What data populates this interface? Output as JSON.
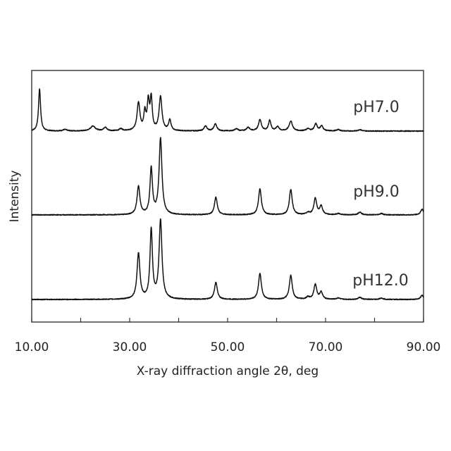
{
  "chart_data": {
    "type": "line",
    "title": "",
    "xlabel": "X-ray diffraction angle 2θ, deg",
    "ylabel": "Intensity",
    "xlim": [
      10,
      90
    ],
    "xticks": [
      10,
      20,
      30,
      40,
      50,
      60,
      70,
      80,
      90
    ],
    "xtick_labels": [
      "10.00",
      "",
      "30.00",
      "",
      "50.00",
      "",
      "70.00",
      "",
      "90.00"
    ],
    "yticks_shown": false,
    "grid": false,
    "legend": "none",
    "series": [
      {
        "name": "pH7.0",
        "baseline": 0,
        "peaks": [
          {
            "x": 11.6,
            "h": 60,
            "w": 0.25
          },
          {
            "x": 16.8,
            "h": 2,
            "w": 0.5
          },
          {
            "x": 22.5,
            "h": 7,
            "w": 0.6
          },
          {
            "x": 25.0,
            "h": 5,
            "w": 0.4
          },
          {
            "x": 28.2,
            "h": 3,
            "w": 0.4
          },
          {
            "x": 31.8,
            "h": 40,
            "w": 0.35
          },
          {
            "x": 33.1,
            "h": 25,
            "w": 0.25
          },
          {
            "x": 33.8,
            "h": 40,
            "w": 0.25
          },
          {
            "x": 34.4,
            "h": 45,
            "w": 0.25
          },
          {
            "x": 36.3,
            "h": 48,
            "w": 0.35
          },
          {
            "x": 38.2,
            "h": 15,
            "w": 0.3
          },
          {
            "x": 45.5,
            "h": 7,
            "w": 0.35
          },
          {
            "x": 47.5,
            "h": 10,
            "w": 0.35
          },
          {
            "x": 51.8,
            "h": 3,
            "w": 0.4
          },
          {
            "x": 54.2,
            "h": 5,
            "w": 0.4
          },
          {
            "x": 56.6,
            "h": 16,
            "w": 0.35
          },
          {
            "x": 58.6,
            "h": 15,
            "w": 0.3
          },
          {
            "x": 60.2,
            "h": 6,
            "w": 0.35
          },
          {
            "x": 62.9,
            "h": 14,
            "w": 0.4
          },
          {
            "x": 66.4,
            "h": 3,
            "w": 0.4
          },
          {
            "x": 68.0,
            "h": 10,
            "w": 0.35
          },
          {
            "x": 69.2,
            "h": 7,
            "w": 0.35
          },
          {
            "x": 72.6,
            "h": 2,
            "w": 0.4
          },
          {
            "x": 77.0,
            "h": 2,
            "w": 0.4
          }
        ]
      },
      {
        "name": "pH9.0",
        "baseline": 0,
        "peaks": [
          {
            "x": 31.8,
            "h": 40,
            "w": 0.35
          },
          {
            "x": 34.4,
            "h": 65,
            "w": 0.3
          },
          {
            "x": 36.3,
            "h": 108,
            "w": 0.35
          },
          {
            "x": 47.6,
            "h": 25,
            "w": 0.35
          },
          {
            "x": 56.6,
            "h": 37,
            "w": 0.35
          },
          {
            "x": 62.9,
            "h": 36,
            "w": 0.35
          },
          {
            "x": 66.4,
            "h": 3,
            "w": 0.4
          },
          {
            "x": 67.9,
            "h": 23,
            "w": 0.35
          },
          {
            "x": 69.1,
            "h": 12,
            "w": 0.35
          },
          {
            "x": 72.6,
            "h": 2,
            "w": 0.4
          },
          {
            "x": 77.0,
            "h": 4,
            "w": 0.4
          },
          {
            "x": 81.4,
            "h": 2,
            "w": 0.4
          },
          {
            "x": 89.7,
            "h": 8,
            "w": 0.35
          }
        ]
      },
      {
        "name": "pH12.0",
        "baseline": 0,
        "peaks": [
          {
            "x": 31.8,
            "h": 65,
            "w": 0.35
          },
          {
            "x": 34.4,
            "h": 98,
            "w": 0.3
          },
          {
            "x": 36.3,
            "h": 112,
            "w": 0.35
          },
          {
            "x": 47.6,
            "h": 24,
            "w": 0.35
          },
          {
            "x": 56.6,
            "h": 37,
            "w": 0.35
          },
          {
            "x": 62.9,
            "h": 34,
            "w": 0.35
          },
          {
            "x": 66.4,
            "h": 3,
            "w": 0.4
          },
          {
            "x": 67.9,
            "h": 21,
            "w": 0.35
          },
          {
            "x": 69.1,
            "h": 10,
            "w": 0.35
          },
          {
            "x": 72.6,
            "h": 2,
            "w": 0.4
          },
          {
            "x": 77.0,
            "h": 3,
            "w": 0.4
          },
          {
            "x": 81.4,
            "h": 2,
            "w": 0.4
          },
          {
            "x": 89.7,
            "h": 6,
            "w": 0.35
          }
        ]
      }
    ]
  }
}
